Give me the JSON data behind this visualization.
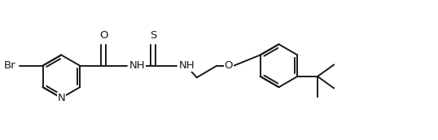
{
  "bg_color": "#ffffff",
  "line_color": "#1a1a1a",
  "line_width": 1.4,
  "font_size": 9.5,
  "figsize": [
    5.38,
    1.72
  ],
  "dpi": 100,
  "xlim": [
    -0.3,
    9.8
  ],
  "ylim": [
    -1.5,
    1.5
  ]
}
